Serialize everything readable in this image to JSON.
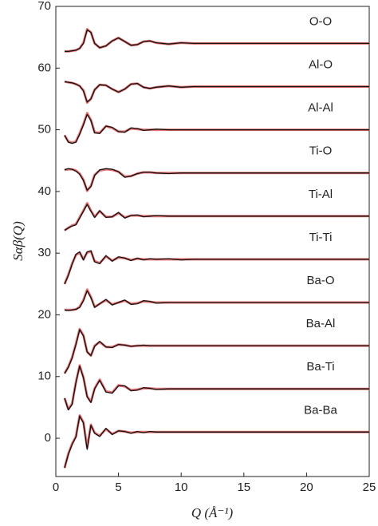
{
  "chart_data": {
    "type": "line",
    "x_label": "Q (Å⁻¹)",
    "y_label": "Sαβ(Q)",
    "x": [
      0.7,
      1,
      1.3,
      1.6,
      1.9,
      2.2,
      2.5,
      2.8,
      3.1,
      3.5,
      4,
      4.5,
      5,
      5.5,
      6,
      6.5,
      7,
      7.5,
      8,
      9,
      10,
      11,
      12,
      14,
      16,
      18,
      20,
      22,
      25
    ],
    "xlim": [
      0,
      25
    ],
    "xticks": [
      0,
      5,
      10,
      15,
      20,
      25
    ],
    "ylim": [
      -6.2,
      70
    ],
    "yticks": [
      0,
      10,
      20,
      30,
      40,
      50,
      60,
      70
    ],
    "data_color": "#111111",
    "fit_color": "#e05a5a",
    "series": [
      {
        "name": "O-O",
        "values": [
          62.7,
          62.7,
          62.8,
          62.9,
          63.2,
          64,
          66.2,
          65.8,
          64,
          63.3,
          63.6,
          64.4,
          64.9,
          64.3,
          63.7,
          63.8,
          64.3,
          64.4,
          64.1,
          63.9,
          64.1,
          64,
          64,
          64,
          64,
          64,
          64,
          64,
          64
        ],
        "fit": [
          62.7,
          62.7,
          62.8,
          62.9,
          63.2,
          64.1,
          66.3,
          65.8,
          64,
          63.3,
          63.6,
          64.4,
          64.9,
          64.3,
          63.7,
          63.8,
          64.3,
          64.4,
          64.1,
          63.9,
          64.1,
          64,
          64,
          64,
          64,
          64,
          64,
          64,
          64
        ]
      },
      {
        "name": "Al-O",
        "values": [
          57.8,
          57.7,
          57.6,
          57.4,
          57.1,
          56.3,
          54.5,
          55,
          56.5,
          57.3,
          57.2,
          56.6,
          56.1,
          56.6,
          57.4,
          57.5,
          56.9,
          56.7,
          56.9,
          57.1,
          56.9,
          57,
          57,
          57,
          57,
          57,
          57,
          57,
          57
        ],
        "fit": [
          57.8,
          57.7,
          57.6,
          57.4,
          57.1,
          56.4,
          54.4,
          55,
          56.5,
          57.3,
          57.2,
          56.6,
          56.1,
          56.6,
          57.4,
          57.5,
          56.9,
          56.7,
          56.9,
          57.1,
          56.9,
          57,
          57,
          57,
          57,
          57,
          57,
          57,
          57
        ]
      },
      {
        "name": "Al-Al",
        "values": [
          49.1,
          48,
          47.8,
          48,
          49.3,
          50.8,
          52.5,
          51.5,
          49.5,
          49.4,
          50.6,
          50.4,
          49.7,
          49.6,
          50.3,
          50.2,
          49.9,
          50,
          50.1,
          50,
          50,
          50,
          50,
          50,
          50,
          50,
          50,
          50,
          50
        ],
        "fit": [
          49.1,
          48.1,
          47.9,
          48.1,
          49.4,
          50.9,
          52.7,
          51.6,
          49.6,
          49.5,
          50.6,
          50.3,
          49.7,
          49.7,
          50.2,
          50.1,
          50,
          50,
          50,
          50,
          50,
          50,
          50,
          50,
          50,
          50,
          50,
          50,
          50
        ]
      },
      {
        "name": "Ti-O",
        "values": [
          43.5,
          43.7,
          43.6,
          43.3,
          42.8,
          41.8,
          40.2,
          40.8,
          42.6,
          43.5,
          43.7,
          43.6,
          43.2,
          42.3,
          42.5,
          42.9,
          43.1,
          43.1,
          43,
          42.9,
          43,
          43,
          43,
          43,
          43,
          43,
          43,
          43,
          43
        ],
        "fit": [
          43.5,
          43.6,
          43.6,
          43.4,
          42.9,
          41.9,
          40.1,
          40.9,
          42.7,
          43.4,
          43.6,
          43.5,
          43.2,
          42.4,
          42.5,
          42.9,
          43.1,
          43.1,
          43,
          43,
          43,
          43,
          43,
          43,
          43,
          43,
          43,
          43,
          43
        ]
      },
      {
        "name": "Ti-Al",
        "values": [
          33.7,
          34.1,
          34.4,
          34.6,
          35.7,
          36.8,
          37.9,
          36.8,
          35.8,
          36.9,
          35.8,
          35.9,
          36.6,
          35.7,
          36.1,
          36.2,
          35.9,
          36,
          36.1,
          36,
          36,
          36,
          36,
          36,
          36,
          36,
          36,
          36,
          36
        ],
        "fit": [
          33.7,
          34.1,
          34.5,
          34.7,
          35.8,
          36.9,
          38.1,
          36.9,
          35.9,
          36.8,
          35.9,
          35.9,
          36.5,
          35.8,
          36.1,
          36.1,
          36,
          36,
          36,
          36,
          36,
          36,
          36,
          36,
          36,
          36,
          36,
          36,
          36
        ]
      },
      {
        "name": "Ti-Ti",
        "values": [
          25,
          26.4,
          28.2,
          29.8,
          30.2,
          28.9,
          30.2,
          30.4,
          28.6,
          28.3,
          29.6,
          28.7,
          29.4,
          29.2,
          28.8,
          29.2,
          28.9,
          29.1,
          29,
          29.1,
          28.9,
          29,
          29,
          29,
          29,
          29,
          29,
          29,
          29
        ],
        "fit": [
          25,
          26.5,
          28.3,
          29.7,
          30.1,
          29,
          30.1,
          30.3,
          28.7,
          28.4,
          29.5,
          28.8,
          29.3,
          29.2,
          28.9,
          29.1,
          29,
          29,
          29,
          29,
          29,
          29,
          29,
          29,
          29,
          29,
          29,
          29,
          29
        ]
      },
      {
        "name": "Ba-O",
        "values": [
          20.8,
          20.7,
          20.8,
          20.9,
          21.2,
          22.3,
          23.9,
          22.8,
          21.2,
          21.8,
          22.5,
          21.6,
          22,
          22.4,
          21.7,
          21.8,
          22.3,
          22.2,
          21.9,
          22,
          22,
          22,
          22,
          22,
          22,
          22,
          22,
          22,
          22
        ],
        "fit": [
          20.8,
          20.8,
          20.8,
          20.9,
          21.3,
          22.4,
          24.1,
          22.9,
          21.3,
          21.8,
          22.4,
          21.7,
          22,
          22.3,
          21.8,
          21.9,
          22.2,
          22.1,
          22,
          22,
          22,
          22,
          22,
          22,
          22,
          22,
          22,
          22,
          22
        ]
      },
      {
        "name": "Ba-Al",
        "values": [
          10.5,
          11.5,
          13,
          15.2,
          17.6,
          16.6,
          14,
          13.4,
          14.9,
          15.7,
          14.8,
          14.7,
          15.2,
          15.1,
          14.9,
          15,
          15.1,
          15,
          15,
          15,
          15,
          15,
          15,
          15,
          15,
          15,
          15,
          15,
          15
        ],
        "fit": [
          10.5,
          11.6,
          13.1,
          15.3,
          17.7,
          16.7,
          14,
          13.4,
          15,
          15.6,
          14.8,
          14.8,
          15.2,
          15.1,
          14.9,
          15,
          15,
          15,
          15,
          15,
          15,
          15,
          15,
          15,
          15,
          15,
          15,
          15,
          15
        ]
      },
      {
        "name": "Ba-Ti",
        "values": [
          6.5,
          4.6,
          5.5,
          9,
          11.7,
          9.8,
          6.7,
          5.8,
          8,
          9.4,
          7.5,
          7.3,
          8.5,
          8.5,
          7.7,
          7.8,
          8.2,
          8.1,
          7.9,
          8,
          8,
          8,
          8,
          8,
          8,
          8,
          8,
          8,
          8
        ],
        "fit": [
          6.5,
          4.7,
          5.6,
          9.1,
          11.8,
          9.9,
          6.8,
          5.9,
          8.1,
          9.5,
          7.6,
          7.4,
          8.6,
          8.4,
          7.8,
          7.9,
          8.1,
          8.1,
          8,
          8,
          8,
          8,
          8,
          8,
          8,
          8,
          8,
          8,
          8
        ]
      },
      {
        "name": "Ba-Ba",
        "values": [
          -4.8,
          -2.6,
          -1,
          0.2,
          3.6,
          2.5,
          -1.8,
          2.1,
          0.8,
          0.3,
          1.6,
          0.6,
          1.2,
          1.1,
          0.8,
          1.1,
          0.9,
          1.1,
          1,
          1,
          1,
          1,
          1,
          1,
          1,
          1,
          1,
          1,
          1
        ],
        "fit": [
          -4.8,
          -2.5,
          -0.9,
          0.3,
          3.7,
          2.6,
          -1.5,
          2.2,
          0.9,
          0.4,
          1.5,
          0.7,
          1.2,
          1.1,
          0.9,
          1,
          1,
          1,
          1,
          1,
          1,
          1,
          1,
          1,
          1,
          1,
          1,
          1,
          1
        ]
      }
    ]
  }
}
